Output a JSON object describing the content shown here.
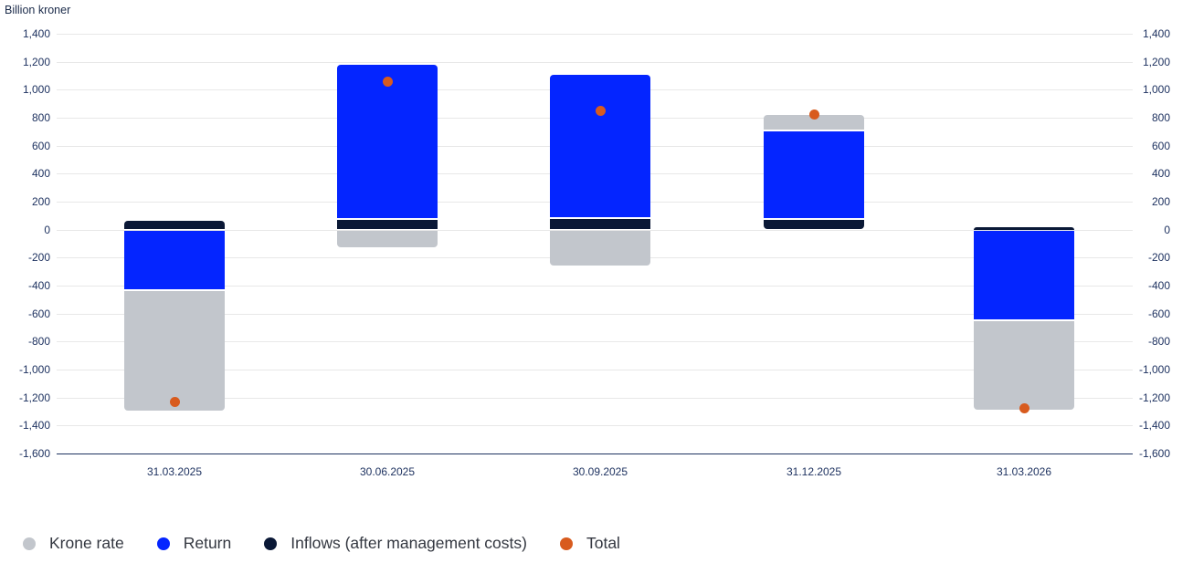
{
  "title": "Billion kroner",
  "colors": {
    "krone_rate": "#c2c6cc",
    "return": "#0425ff",
    "inflows": "#0a1836",
    "total": "#d85b1e",
    "gridline": "#e8e8e8",
    "axis_line": "#1e3260",
    "tick_text": "#1e3260",
    "legend_text": "#333740",
    "background": "#ffffff"
  },
  "chart_data": {
    "type": "bar",
    "subtype": "stacked-column-with-points",
    "title": "Billion kroner",
    "categories": [
      "31.03.2025",
      "30.06.2025",
      "30.09.2025",
      "31.12.2025",
      "31.03.2026"
    ],
    "series": [
      {
        "name": "Krone rate",
        "kind": "column",
        "color": "#c2c6cc",
        "values": [
          -870,
          -130,
          -260,
          115,
          -650
        ]
      },
      {
        "name": "Return",
        "kind": "column",
        "color": "#0425ff",
        "values": [
          -430,
          1110,
          1030,
          635,
          -645
        ]
      },
      {
        "name": "Inflows (after management costs)",
        "kind": "column",
        "color": "#0a1836",
        "values": [
          70,
          75,
          80,
          75,
          15
        ]
      },
      {
        "name": "Total",
        "kind": "point",
        "color": "#d85b1e",
        "values": [
          -1230,
          1055,
          850,
          825,
          -1280
        ]
      }
    ],
    "stack_order_from_zero": [
      "Inflows (after management costs)",
      "Return",
      "Krone rate"
    ],
    "xlabel": "",
    "ylabel": "Billion kroner",
    "ylim": [
      -1600,
      1400
    ],
    "ytick_step": 200,
    "grid": true,
    "axis_labels_both_sides": true,
    "legend_position": "bottom"
  },
  "legend": {
    "items": [
      {
        "label": "Krone rate",
        "color": "#c2c6cc"
      },
      {
        "label": "Return",
        "color": "#0425ff"
      },
      {
        "label": "Inflows (after management costs)",
        "color": "#0a1836"
      },
      {
        "label": "Total",
        "color": "#d85b1e"
      }
    ]
  }
}
